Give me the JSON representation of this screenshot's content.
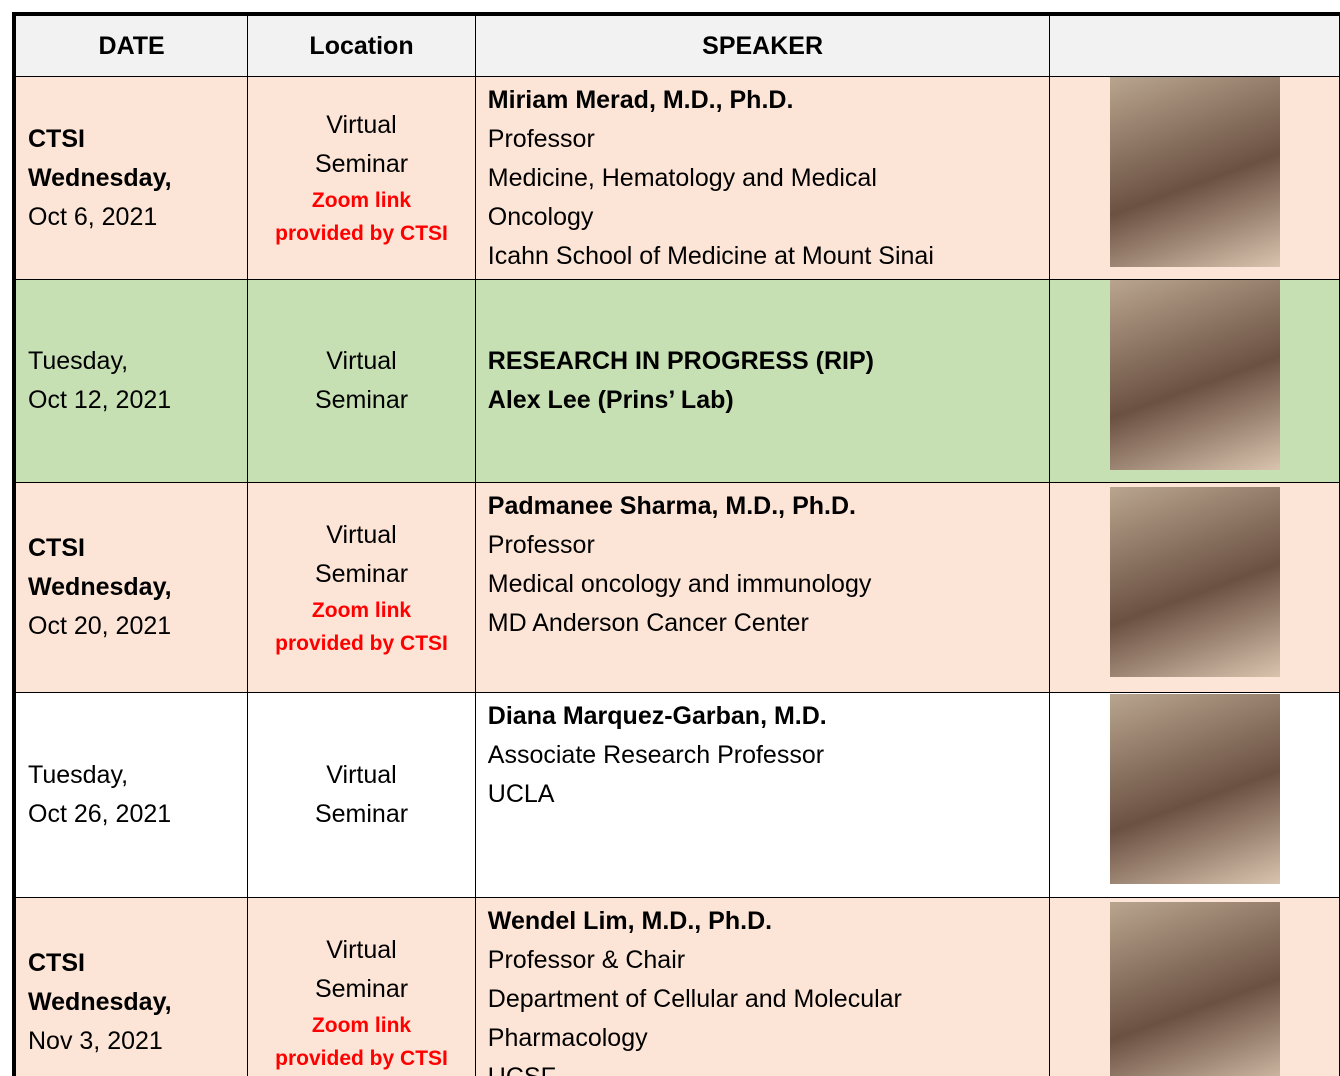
{
  "header": {
    "columns": [
      "DATE",
      "Location",
      "SPEAKER"
    ]
  },
  "table": {
    "rows": [
      {
        "color": "#fce4d6",
        "date": {
          "emphasis": [
            "CTSI",
            "Wednesday,"
          ],
          "text": [
            "Oct 6, 2021"
          ]
        },
        "location": {
          "text": [
            "Virtual",
            "Seminar"
          ],
          "note": [
            "Zoom link",
            "provided by CTSI"
          ]
        },
        "speaker": {
          "names": [
            "Miriam Merad, M.D., Ph.D."
          ],
          "details": [
            "Professor",
            "Medicine, Hematology and Medical",
            "Oncology",
            "Icahn School of Medicine at Mount Sinai"
          ]
        }
      },
      {
        "color": "#c6e0b4",
        "date": {
          "emphasis": [],
          "text": [
            "Tuesday,",
            "Oct 12, 2021"
          ]
        },
        "location": {
          "text": [
            "Virtual",
            "Seminar"
          ],
          "note": []
        },
        "speaker": {
          "names": [
            "RESEARCH IN PROGRESS (RIP)",
            "Alex Lee (Prins’ Lab)"
          ],
          "details": []
        }
      },
      {
        "color": "#fce4d6",
        "date": {
          "emphasis": [
            "CTSI",
            "Wednesday,"
          ],
          "text": [
            "Oct 20, 2021"
          ]
        },
        "location": {
          "text": [
            "Virtual",
            "Seminar"
          ],
          "note": [
            "Zoom link",
            "provided by CTSI"
          ]
        },
        "speaker": {
          "names": [
            "Padmanee Sharma, M.D., Ph.D."
          ],
          "details": [
            "Professor",
            "Medical oncology and immunology",
            "MD Anderson Cancer Center"
          ]
        }
      },
      {
        "color": "#ffffff",
        "date": {
          "emphasis": [],
          "text": [
            "Tuesday,",
            "Oct 26, 2021"
          ]
        },
        "location": {
          "text": [
            "Virtual",
            "Seminar"
          ],
          "note": []
        },
        "speaker": {
          "names": [
            "Diana Marquez-Garban, M.D."
          ],
          "details": [
            "Associate Research Professor",
            "UCLA"
          ]
        }
      },
      {
        "color": "#fce4d6",
        "date": {
          "emphasis": [
            "CTSI",
            "Wednesday,"
          ],
          "text": [
            "Nov 3, 2021"
          ]
        },
        "location": {
          "text": [
            "Virtual",
            "Seminar"
          ],
          "note": [
            "Zoom link",
            "provided by CTSI"
          ]
        },
        "speaker": {
          "names": [
            "Wendel Lim, M.D., Ph.D."
          ],
          "details": [
            "Professor & Chair",
            "Department of Cellular and Molecular",
            "Pharmacology",
            "UCSF"
          ]
        }
      }
    ]
  }
}
